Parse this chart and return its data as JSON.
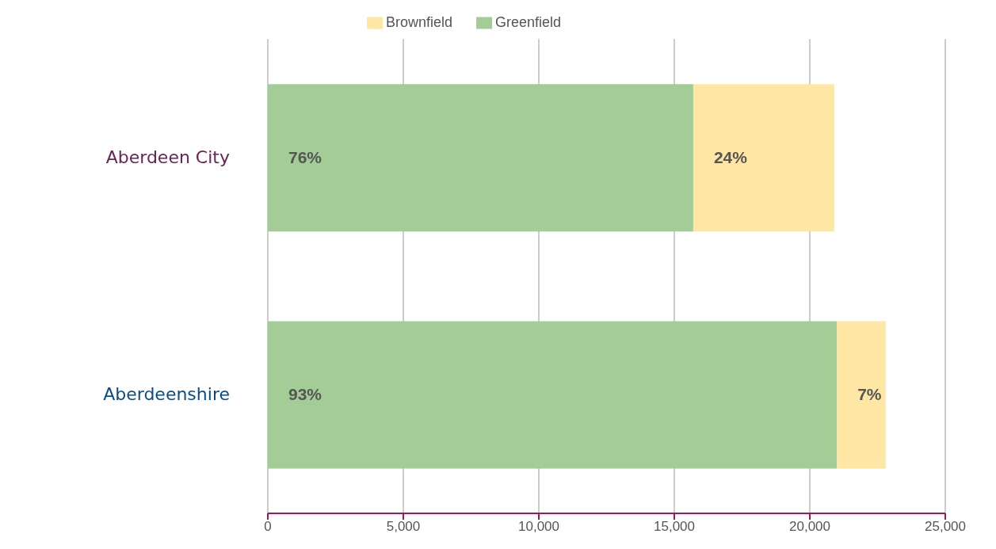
{
  "chart_data": {
    "type": "bar",
    "orientation": "horizontal",
    "stacked": true,
    "categories": [
      "Aberdeen City",
      "Aberdeenshire"
    ],
    "series": [
      {
        "name": "Greenfield",
        "color": "#a3cc96",
        "values": [
          15700,
          21000
        ]
      },
      {
        "name": "Brownfield",
        "color": "#fee6a5",
        "values": [
          5200,
          1800
        ]
      }
    ],
    "annotations": [
      {
        "text": "76%",
        "x": 0,
        "y": "Aberdeen City"
      },
      {
        "text": "24%",
        "x": 15700,
        "y": "Aberdeen City"
      },
      {
        "text": "93%",
        "x": 0,
        "y": "Aberdeenshire"
      },
      {
        "text": "7%",
        "x": 21000,
        "y": "Aberdeenshire"
      }
    ],
    "xlim": [
      0,
      25000
    ],
    "xticks": [
      {
        "value": 0,
        "label": "0"
      },
      {
        "value": 5000,
        "label": "5,000"
      },
      {
        "value": 10000,
        "label": "10,000"
      },
      {
        "value": 15000,
        "label": "15,000"
      },
      {
        "value": 20000,
        "label": "20,000"
      },
      {
        "value": 25000,
        "label": "25,000"
      }
    ],
    "grid": "x",
    "legend": "top"
  }
}
